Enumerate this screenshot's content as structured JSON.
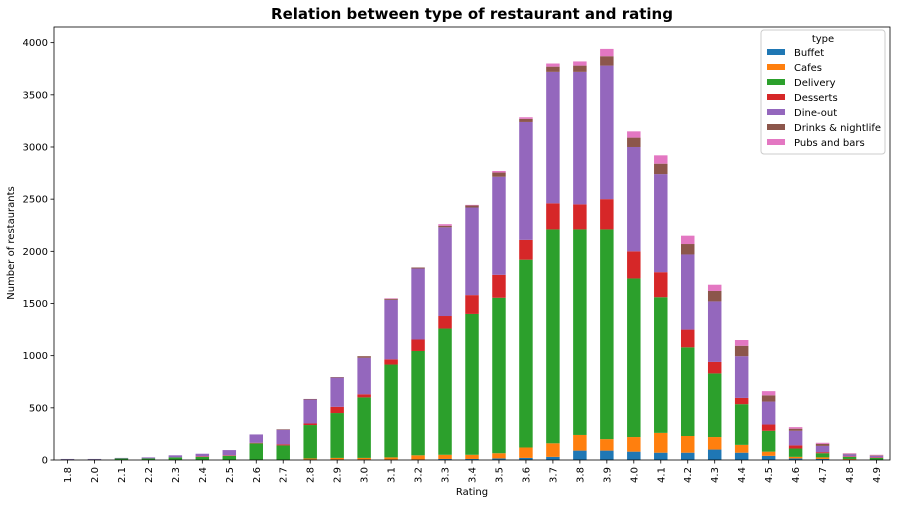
{
  "chart_data": {
    "type": "bar",
    "stacked": true,
    "title": "Relation between type of restaurant and rating",
    "xlabel": "Rating",
    "ylabel": "Number of restaurants",
    "ylim": [
      0,
      4150
    ],
    "yticks": [
      0,
      500,
      1000,
      1500,
      2000,
      2500,
      3000,
      3500,
      4000
    ],
    "grid": false,
    "legend": {
      "title": "type",
      "placement": "top-right"
    },
    "categories": [
      "1.8",
      "2.0",
      "2.1",
      "2.2",
      "2.3",
      "2.4",
      "2.5",
      "2.6",
      "2.7",
      "2.8",
      "2.9",
      "3.0",
      "3.1",
      "3.2",
      "3.3",
      "3.4",
      "3.5",
      "3.6",
      "3.7",
      "3.8",
      "3.9",
      "4.0",
      "4.1",
      "4.2",
      "4.3",
      "4.4",
      "4.5",
      "4.6",
      "4.7",
      "4.8",
      "4.9"
    ],
    "series": [
      {
        "name": "Buffet",
        "color": "#1f77b4",
        "values": [
          0,
          0,
          0,
          0,
          0,
          0,
          0,
          0,
          0,
          5,
          5,
          5,
          5,
          5,
          10,
          10,
          15,
          20,
          30,
          90,
          90,
          80,
          70,
          70,
          100,
          70,
          40,
          15,
          10,
          5,
          0
        ]
      },
      {
        "name": "Cafes",
        "color": "#ff7f0e",
        "values": [
          0,
          0,
          0,
          0,
          0,
          0,
          0,
          0,
          0,
          10,
          15,
          15,
          20,
          40,
          40,
          40,
          50,
          100,
          130,
          150,
          110,
          140,
          190,
          160,
          120,
          75,
          40,
          15,
          15,
          5,
          0
        ]
      },
      {
        "name": "Delivery",
        "color": "#2ca02c",
        "values": [
          5,
          5,
          15,
          15,
          25,
          30,
          40,
          160,
          140,
          320,
          430,
          580,
          890,
          1000,
          1210,
          1350,
          1490,
          1800,
          2050,
          1970,
          2010,
          1520,
          1300,
          850,
          610,
          390,
          200,
          80,
          40,
          20,
          20
        ]
      },
      {
        "name": "Desserts",
        "color": "#d62728",
        "values": [
          0,
          0,
          0,
          0,
          0,
          5,
          5,
          5,
          10,
          15,
          60,
          30,
          50,
          110,
          120,
          180,
          220,
          190,
          250,
          240,
          290,
          260,
          240,
          170,
          110,
          60,
          60,
          30,
          10,
          5,
          5
        ]
      },
      {
        "name": "Dine-out",
        "color": "#9467bd",
        "values": [
          5,
          5,
          5,
          10,
          20,
          25,
          50,
          80,
          140,
          230,
          280,
          350,
          570,
          680,
          850,
          840,
          940,
          1130,
          1260,
          1270,
          1280,
          1000,
          940,
          720,
          580,
          400,
          220,
          140,
          60,
          20,
          15
        ]
      },
      {
        "name": "Drinks & nightlife",
        "color": "#8c564b",
        "values": [
          0,
          0,
          0,
          0,
          0,
          0,
          0,
          0,
          5,
          5,
          5,
          15,
          10,
          10,
          15,
          20,
          40,
          30,
          50,
          60,
          90,
          90,
          100,
          100,
          100,
          100,
          60,
          20,
          20,
          5,
          5
        ]
      },
      {
        "name": "Pubs and bars",
        "color": "#e377c2",
        "values": [
          0,
          0,
          0,
          0,
          0,
          0,
          0,
          0,
          0,
          0,
          0,
          0,
          5,
          0,
          15,
          5,
          15,
          15,
          30,
          40,
          70,
          60,
          80,
          80,
          60,
          55,
          40,
          15,
          10,
          5,
          5
        ]
      }
    ]
  }
}
